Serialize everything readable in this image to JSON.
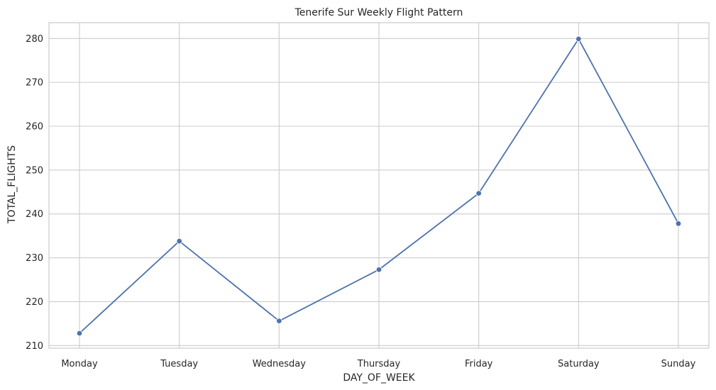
{
  "chart_data": {
    "type": "line",
    "title": "Tenerife Sur Weekly Flight Pattern",
    "xlabel": "DAY_OF_WEEK",
    "ylabel": "TOTAL_FLIGHTS",
    "categories": [
      "Monday",
      "Tuesday",
      "Wednesday",
      "Thursday",
      "Friday",
      "Saturday",
      "Sunday"
    ],
    "series": [
      {
        "values": [
          212.8,
          233.8,
          215.6,
          227.3,
          244.7,
          279.9,
          237.8
        ]
      }
    ],
    "ylim": [
      209.4,
      283.6
    ],
    "yticks": [
      210,
      220,
      230,
      240,
      250,
      260,
      270,
      280
    ],
    "grid": true,
    "line_color": "#4c72b0",
    "grid_color": "#cccccc",
    "markers": true
  }
}
